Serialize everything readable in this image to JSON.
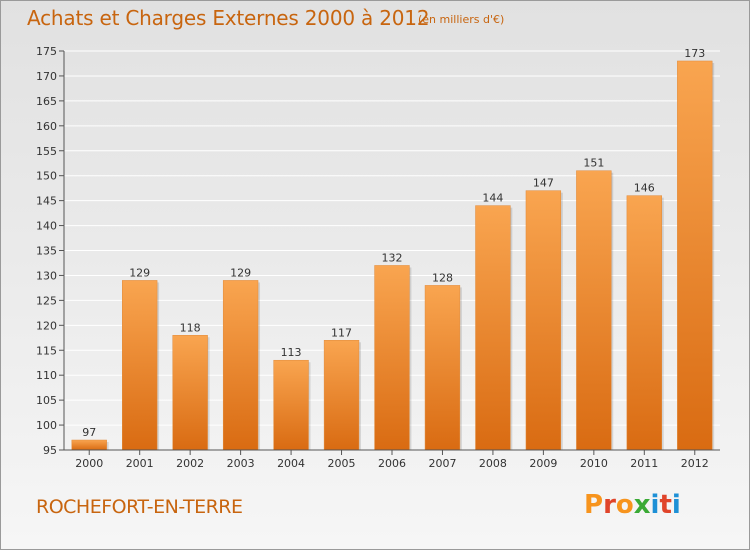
{
  "header": {
    "title": "Achats et Charges Externes 2000 à 2012",
    "unit": "(en milliers d'€)"
  },
  "footer": {
    "town": "ROCHEFORT-EN-TERRE",
    "logo": "Proxiti",
    "logo_colors": [
      "#f7941d",
      "#e0442a",
      "#f7941d",
      "#3aaa35",
      "#1e90d6",
      "#e0442a",
      "#1e90d6"
    ]
  },
  "colors": {
    "bar_light": "#f9a550",
    "bar_dark": "#d96b12",
    "grid": "#ffffff",
    "text": "#c8650f"
  },
  "chart_data": {
    "type": "bar",
    "categories": [
      "2000",
      "2001",
      "2002",
      "2003",
      "2004",
      "2005",
      "2006",
      "2007",
      "2008",
      "2009",
      "2010",
      "2011",
      "2012"
    ],
    "values": [
      97,
      129,
      118,
      129,
      113,
      117,
      132,
      128,
      144,
      147,
      151,
      146,
      173
    ],
    "ylim": [
      95,
      175
    ],
    "yticks": [
      95,
      100,
      105,
      110,
      115,
      120,
      125,
      130,
      135,
      140,
      145,
      150,
      155,
      160,
      165,
      170,
      175
    ],
    "grid": true,
    "data_labels": true
  }
}
